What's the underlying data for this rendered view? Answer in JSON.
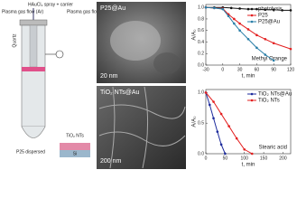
{
  "schematic": {
    "spray": "HAuCl₄ spray + carrier",
    "gas_left": "Plasma gas flow (Ar)",
    "gas_right": "Plasma gas flow (Ar)",
    "quartz": "Quartz",
    "dispersed": "P25 dispersed",
    "nts": "TiO₂ NTs",
    "si": "Si"
  },
  "images": [
    {
      "label": "P25@Au",
      "scale": "20 nm"
    },
    {
      "label": "TiO₂ NTs@Au",
      "scale": "200 nm"
    }
  ],
  "chart_data": [
    {
      "type": "line",
      "xlabel": "t, min",
      "ylabel": "A/A₀",
      "annotation": "Methyl Orange",
      "xlim": [
        -30,
        120
      ],
      "xticks": [
        -30,
        0,
        30,
        60,
        90,
        120
      ],
      "ylim": [
        0,
        1.05
      ],
      "yticks": [
        {
          "value": 0,
          "label": "0.0"
        },
        {
          "value": 0.2,
          "label": "0.2"
        },
        {
          "value": 0.4,
          "label": "0.4"
        },
        {
          "value": 0.6,
          "label": "0.6"
        },
        {
          "value": 0.8,
          "label": "0.8"
        },
        {
          "value": 1,
          "label": "1.0"
        }
      ],
      "legend": "upper right",
      "series": [
        {
          "name": "photolysis",
          "color": "#111111",
          "x": [
            -30,
            -15,
            0,
            15,
            30,
            45,
            60,
            75,
            90,
            105,
            120
          ],
          "values": [
            1,
            1,
            1,
            0.99,
            0.98,
            0.97,
            0.97,
            0.96,
            0.96,
            0.95,
            0.95
          ]
        },
        {
          "name": "P25",
          "color": "#e32020",
          "x": [
            -30,
            -15,
            0,
            10,
            20,
            30,
            45,
            60,
            75,
            90,
            120
          ],
          "values": [
            1,
            0.99,
            0.98,
            0.88,
            0.8,
            0.72,
            0.62,
            0.52,
            0.45,
            0.38,
            0.28
          ]
        },
        {
          "name": "P25@Au",
          "color": "#2a7fa8",
          "x": [
            -30,
            -15,
            0,
            10,
            20,
            30,
            45,
            60,
            75,
            90
          ],
          "values": [
            1,
            0.99,
            0.97,
            0.85,
            0.72,
            0.6,
            0.45,
            0.3,
            0.18,
            0.08
          ]
        }
      ]
    },
    {
      "type": "line",
      "xlabel": "t, min",
      "ylabel": "A/A₀",
      "annotation": "Stearic acid",
      "xlim": [
        0,
        220
      ],
      "xticks": [
        0,
        50,
        100,
        150,
        200
      ],
      "ylim": [
        0,
        1.05
      ],
      "yticks": [
        {
          "value": 0,
          "label": "0.0"
        },
        {
          "value": 0.5,
          "label": "0.5"
        },
        {
          "value": 1,
          "label": "1.0"
        }
      ],
      "legend": "upper right",
      "series": [
        {
          "name": "TiO₂ NTs@Au",
          "color": "#1c2a9c",
          "x": [
            0,
            10,
            20,
            30,
            40,
            50
          ],
          "values": [
            1,
            0.8,
            0.58,
            0.36,
            0.15,
            0
          ]
        },
        {
          "name": "TiO₂ NTs",
          "color": "#e32020",
          "x": [
            0,
            20,
            40,
            60,
            80,
            100,
            120
          ],
          "values": [
            1,
            0.85,
            0.65,
            0.45,
            0.25,
            0.07,
            0
          ]
        }
      ]
    }
  ]
}
